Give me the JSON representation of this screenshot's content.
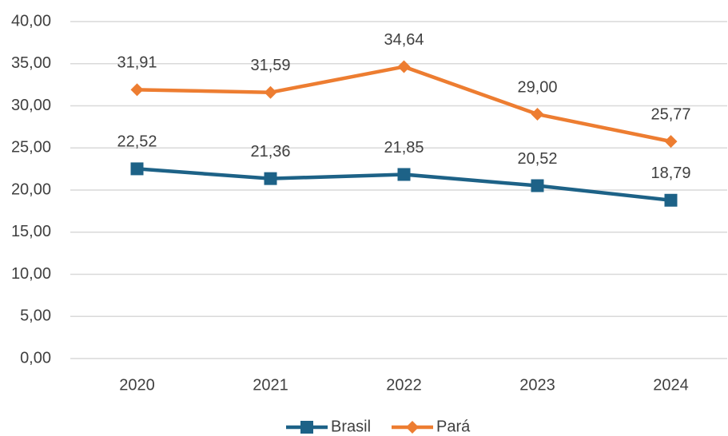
{
  "chart_data": {
    "type": "line",
    "categories": [
      "2020",
      "2021",
      "2022",
      "2023",
      "2024"
    ],
    "series": [
      {
        "name": "Brasil",
        "color": "#1d6287",
        "marker": "square",
        "values": [
          22.52,
          21.36,
          21.85,
          20.52,
          18.79
        ],
        "value_labels": [
          "22,52",
          "21,36",
          "21,85",
          "20,52",
          "18,79"
        ]
      },
      {
        "name": "Pará",
        "color": "#ed7d31",
        "marker": "diamond",
        "values": [
          31.91,
          31.59,
          34.64,
          29.0,
          25.77
        ],
        "value_labels": [
          "31,91",
          "31,59",
          "34,64",
          "29,00",
          "25,77"
        ]
      }
    ],
    "ylim": [
      0,
      40
    ],
    "yticks": [
      {
        "value": 0,
        "label": "0,00"
      },
      {
        "value": 5,
        "label": "5,00"
      },
      {
        "value": 10,
        "label": "10,00"
      },
      {
        "value": 15,
        "label": "15,00"
      },
      {
        "value": 20,
        "label": "20,00"
      },
      {
        "value": 25,
        "label": "25,00"
      },
      {
        "value": 30,
        "label": "30,00"
      },
      {
        "value": 35,
        "label": "35,00"
      },
      {
        "value": 40,
        "label": "40,00"
      }
    ],
    "grid": true,
    "legend": "bottom"
  }
}
